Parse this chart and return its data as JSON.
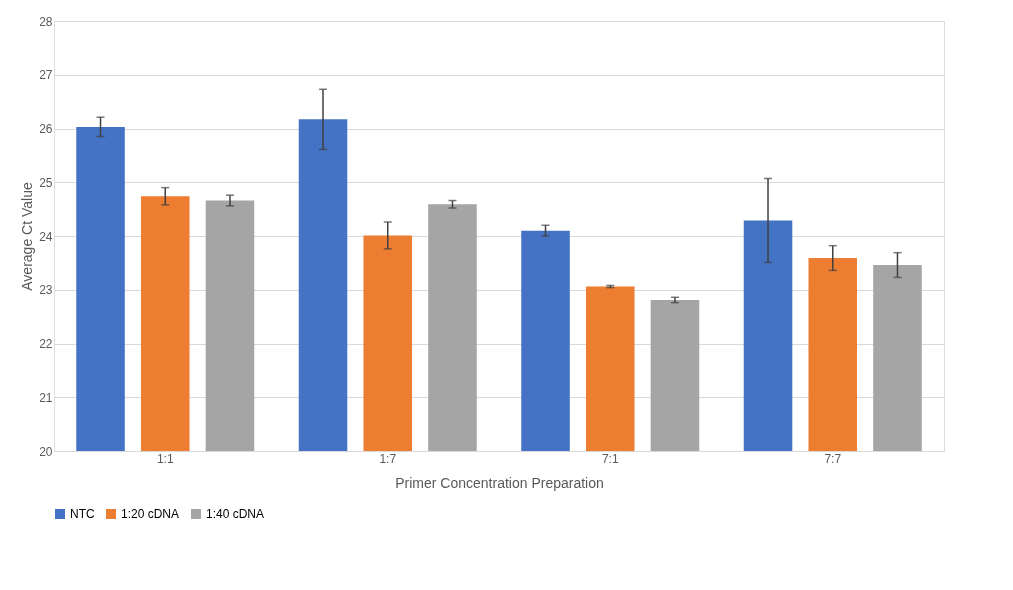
{
  "chart_data": {
    "type": "bar",
    "xlabel": "Primer Concentration Preparation",
    "ylabel": "Average Ct Value",
    "categories": [
      "1:1",
      "1:7",
      "7:1",
      "7:7"
    ],
    "series": [
      {
        "name": "NTC",
        "color": "#4472c4",
        "values": [
          26.03,
          26.17,
          24.1,
          24.29
        ],
        "errors": [
          0.18,
          0.56,
          0.1,
          0.78
        ]
      },
      {
        "name": "1:20 cDNA",
        "color": "#ed7d31",
        "values": [
          24.74,
          24.01,
          23.06,
          23.59
        ],
        "errors": [
          0.16,
          0.25,
          0.02,
          0.23
        ]
      },
      {
        "name": "1:40 cDNA",
        "color": "#a5a5a5",
        "values": [
          24.66,
          24.59,
          22.81,
          23.46
        ],
        "errors": [
          0.1,
          0.07,
          0.05,
          0.23
        ]
      }
    ],
    "ylim": [
      20,
      28
    ],
    "yticks": [
      20,
      21,
      22,
      23,
      24,
      25,
      26,
      27,
      28
    ],
    "grid": "y",
    "legend": "bottom"
  }
}
